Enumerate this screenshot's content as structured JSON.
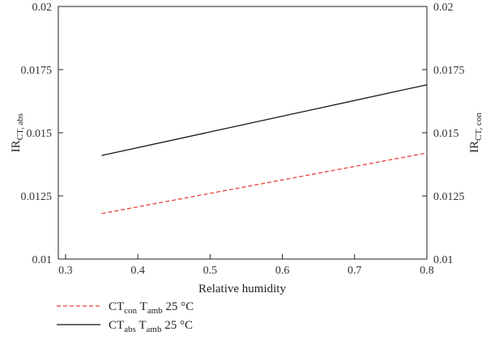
{
  "chart_data": {
    "type": "line",
    "xlabel": "Relative humidity",
    "ylabel_left": {
      "base": "IR",
      "sub": "CT, abs"
    },
    "ylabel_right": {
      "base": "IR",
      "sub": "CT, con"
    },
    "xlim": [
      0.29,
      0.8
    ],
    "ylim": [
      0.01,
      0.02
    ],
    "x_ticks": [
      0.3,
      0.4,
      0.5,
      0.6,
      0.7,
      0.8
    ],
    "x_tick_labels": [
      "0.3",
      "0.4",
      "0.5",
      "0.6",
      "0.7",
      "0.8"
    ],
    "y_ticks": [
      0.01,
      0.0125,
      0.015,
      0.0175,
      0.02
    ],
    "y_tick_labels": [
      "0.01",
      "0.0125",
      "0.015",
      "0.0175",
      "0.02"
    ],
    "grid": false,
    "legend_position": "bottom-left, below plot",
    "series": [
      {
        "legend": {
          "base1": "CT",
          "sub1": "con",
          "base2": " T",
          "sub2": "amb",
          "tail": " 25 °C"
        },
        "color": "#e8413a",
        "dash": "dashed",
        "x": [
          0.35,
          0.8
        ],
        "y": [
          0.0118,
          0.0142
        ]
      },
      {
        "legend": {
          "base1": "CT",
          "sub1": "abs",
          "base2": " T",
          "sub2": "amb",
          "tail": " 25 °C"
        },
        "color": "#111111",
        "dash": "solid",
        "x": [
          0.35,
          0.8
        ],
        "y": [
          0.0141,
          0.0169
        ]
      }
    ]
  }
}
